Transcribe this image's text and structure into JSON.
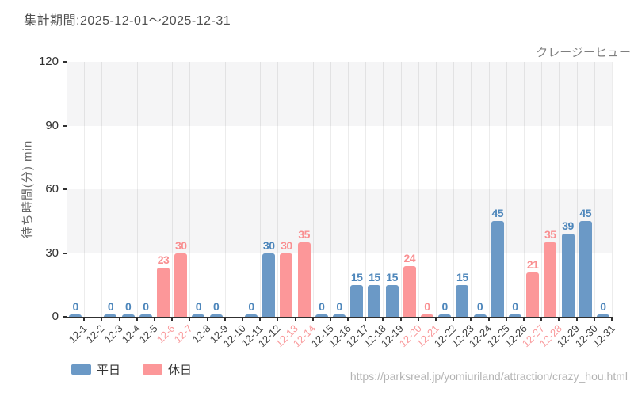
{
  "header": {
    "period_label": "集計期間:2025-12-01〜2025-12-31",
    "attraction_name": "クレージーヒュー"
  },
  "footer": {
    "source_url": "https://parksreal.jp/yomiuriland/attraction/crazy_hou.html"
  },
  "legend": {
    "items": [
      {
        "label": "平日",
        "type": "weekday"
      },
      {
        "label": "休日",
        "type": "holiday"
      }
    ]
  },
  "chart_data": {
    "type": "bar",
    "title": "集計期間:2025-12-01〜2025-12-31",
    "ylabel": "待ち時間(分) min",
    "xlabel": "",
    "ylim": [
      0,
      120
    ],
    "yticks": [
      0,
      30,
      60,
      90,
      120
    ],
    "grid": true,
    "legend_position": "bottom-left",
    "days": [
      {
        "date": "12-1",
        "value": 0,
        "day_type": "weekday"
      },
      {
        "date": "12-2",
        "value": null,
        "day_type": "weekday"
      },
      {
        "date": "12-3",
        "value": 0,
        "day_type": "weekday"
      },
      {
        "date": "12-4",
        "value": 0,
        "day_type": "weekday"
      },
      {
        "date": "12-5",
        "value": 0,
        "day_type": "weekday"
      },
      {
        "date": "12-6",
        "value": 23,
        "day_type": "holiday"
      },
      {
        "date": "12-7",
        "value": 30,
        "day_type": "holiday"
      },
      {
        "date": "12-8",
        "value": 0,
        "day_type": "weekday"
      },
      {
        "date": "12-9",
        "value": 0,
        "day_type": "weekday"
      },
      {
        "date": "12-10",
        "value": null,
        "day_type": "weekday"
      },
      {
        "date": "12-11",
        "value": 0,
        "day_type": "weekday"
      },
      {
        "date": "12-12",
        "value": 30,
        "day_type": "weekday"
      },
      {
        "date": "12-13",
        "value": 30,
        "day_type": "holiday"
      },
      {
        "date": "12-14",
        "value": 35,
        "day_type": "holiday"
      },
      {
        "date": "12-15",
        "value": 0,
        "day_type": "weekday"
      },
      {
        "date": "12-16",
        "value": 0,
        "day_type": "weekday"
      },
      {
        "date": "12-17",
        "value": 15,
        "day_type": "weekday"
      },
      {
        "date": "12-18",
        "value": 15,
        "day_type": "weekday"
      },
      {
        "date": "12-19",
        "value": 15,
        "day_type": "weekday"
      },
      {
        "date": "12-20",
        "value": 24,
        "day_type": "holiday"
      },
      {
        "date": "12-21",
        "value": 0,
        "day_type": "holiday"
      },
      {
        "date": "12-22",
        "value": 0,
        "day_type": "weekday"
      },
      {
        "date": "12-23",
        "value": 15,
        "day_type": "weekday"
      },
      {
        "date": "12-24",
        "value": 0,
        "day_type": "weekday"
      },
      {
        "date": "12-25",
        "value": 45,
        "day_type": "weekday"
      },
      {
        "date": "12-26",
        "value": 0,
        "day_type": "weekday"
      },
      {
        "date": "12-27",
        "value": 21,
        "day_type": "holiday"
      },
      {
        "date": "12-28",
        "value": 35,
        "day_type": "holiday"
      },
      {
        "date": "12-29",
        "value": 39,
        "day_type": "weekday"
      },
      {
        "date": "12-30",
        "value": 45,
        "day_type": "weekday"
      },
      {
        "date": "12-31",
        "value": 0,
        "day_type": "weekday"
      }
    ],
    "colors": {
      "weekday": "#6b99c6",
      "holiday": "#fc9799",
      "weekday_value_label": "#4d86bb",
      "holiday_value_label": "#f98f91",
      "xlabel_weekday": "#3f3f3f",
      "xlabel_holiday": "#f9999b",
      "stripe": "#f5f5f6"
    }
  }
}
